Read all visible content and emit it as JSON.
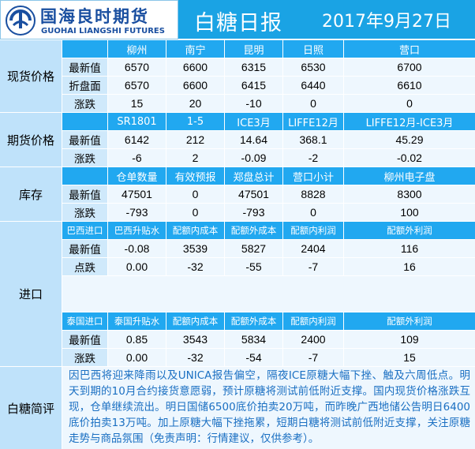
{
  "header": {
    "logo_cn": "国海良时期货",
    "logo_en": "GUOHAI LIANGSHI FUTURES",
    "title": "白糖日报",
    "date": "2017年9月27日"
  },
  "colors": {
    "header_bg": "#1aa3e4",
    "col_header_bg": "#21a8f0",
    "section_bg": "#bfe2fa",
    "label_bg": "#cfe9fb",
    "value_bg": "#eef7fe",
    "comment_text": "#1a6fc2"
  },
  "spot": {
    "section": "现货价格",
    "headers": [
      "柳州",
      "南宁",
      "昆明",
      "日照",
      "营口"
    ],
    "rows": [
      {
        "label": "最新值",
        "values": [
          "6570",
          "6600",
          "6315",
          "6530",
          "6700"
        ]
      },
      {
        "label": "折盘面",
        "values": [
          "6570",
          "6600",
          "6415",
          "6440",
          "6610"
        ]
      },
      {
        "label": "涨跌",
        "values": [
          "15",
          "20",
          "-10",
          "0",
          "0"
        ]
      }
    ]
  },
  "futures": {
    "section": "期货价格",
    "headers": [
      "SR1801",
      "1-5",
      "ICE3月",
      "LIFFE12月",
      "LIFFE12月-ICE3月"
    ],
    "rows": [
      {
        "label": "最新值",
        "values": [
          "6142",
          "212",
          "14.64",
          "368.1",
          "45.29"
        ]
      },
      {
        "label": "涨跌",
        "values": [
          "-6",
          "2",
          "-0.09",
          "-2",
          "-0.02"
        ]
      }
    ]
  },
  "inventory": {
    "section": "库存",
    "headers": [
      "仓单数量",
      "有效预报",
      "郑盘总计",
      "营口小计",
      "柳州电子盘"
    ],
    "rows": [
      {
        "label": "最新值",
        "values": [
          "47501",
          "0",
          "47501",
          "8828",
          "8300"
        ]
      },
      {
        "label": "涨跌",
        "values": [
          "-793",
          "0",
          "-793",
          "0",
          "100"
        ]
      }
    ]
  },
  "imports": {
    "section": "进口",
    "brazil": {
      "title": "巴西进口",
      "headers": [
        "巴西升贴水",
        "配额内成本",
        "配额外成本",
        "配额内利润",
        "配额外利润"
      ],
      "rows": [
        {
          "label": "最新值",
          "values": [
            "-0.08",
            "3539",
            "5827",
            "2404",
            "116"
          ]
        },
        {
          "label": "点跌",
          "values": [
            "0.00",
            "-32",
            "-55",
            "-7",
            "16"
          ]
        }
      ]
    },
    "thailand": {
      "title": "泰国进口",
      "headers": [
        "泰国升贴水",
        "配额内成本",
        "配额外成本",
        "配额内利润",
        "配额外利润"
      ],
      "rows": [
        {
          "label": "最新值",
          "values": [
            "0.85",
            "3543",
            "5834",
            "2400",
            "109"
          ]
        },
        {
          "label": "涨跌",
          "values": [
            "0.00",
            "-32",
            "-54",
            "-7",
            "15"
          ]
        }
      ]
    }
  },
  "comment": {
    "section": "白糖简评",
    "text": "因巴西将迎来降雨以及UNICA报告偏空，隔夜ICE原糖大幅下挫、触及六周低点。明天到期的10月合约接货意愿弱，预计原糖将测试前低附近支撑。国内现货价格涨跌互现，仓单继续流出。明日国储6500底价拍卖20万吨，而昨晚广西地储公告明日6400底价拍卖13万吨。加上原糖大幅下挫拖累，短期白糖将测试前低附近支撑，关注原糖走势与商品氛围（免责声明：行情建议，仅供参考）。"
  }
}
